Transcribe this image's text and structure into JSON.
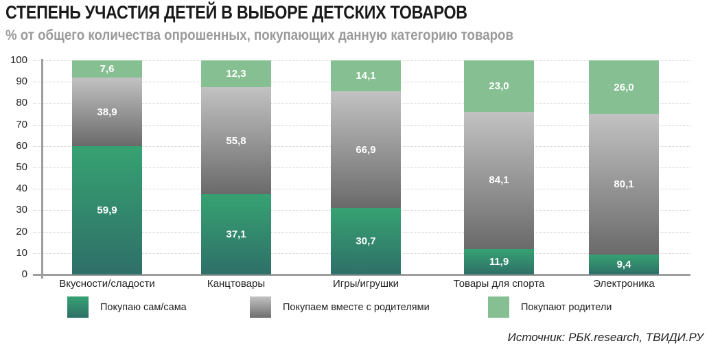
{
  "header": {
    "title": "СТЕПЕНЬ УЧАСТИЯ ДЕТЕЙ В ВЫБОРЕ ДЕТСКИХ ТОВАРОВ",
    "subtitle": "% от общего количества опрошенных, покупающих данную категорию товаров"
  },
  "axis": {
    "y_ticks": [
      "100",
      "90",
      "80",
      "70",
      "60",
      "50",
      "40",
      "30",
      "20",
      "10",
      "0"
    ]
  },
  "legend": [
    {
      "label": "Покупаю сам/сама",
      "color": "#36a272"
    },
    {
      "label": "Покупаем вместе с родителями",
      "color": "#9a9a9a"
    },
    {
      "label": "Покупают родители",
      "color": "#86bf91"
    }
  ],
  "source": "Источник: РБК.research, ТВИДИ.РУ",
  "bars": [
    {
      "category": "Вкусности/сладости",
      "self": {
        "label": "59,9",
        "h": 59.9
      },
      "together": {
        "label": "38,9",
        "h": 32.1
      },
      "parents": {
        "label": "7,6",
        "h": 8.0
      }
    },
    {
      "category": "Канцтовары",
      "self": {
        "label": "37,1",
        "h": 37.4
      },
      "together": {
        "label": "55,8",
        "h": 50.1
      },
      "parents": {
        "label": "12,3",
        "h": 12.5
      }
    },
    {
      "category": "Игры/игрушки",
      "self": {
        "label": "30,7",
        "h": 31.0
      },
      "together": {
        "label": "66,9",
        "h": 54.6
      },
      "parents": {
        "label": "14,1",
        "h": 14.4
      }
    },
    {
      "category": "Товары для спорта",
      "self": {
        "label": "11,9",
        "h": 11.9
      },
      "together": {
        "label": "84,1",
        "h": 64.1
      },
      "parents": {
        "label": "23,0",
        "h": 24.0
      }
    },
    {
      "category": "Электроника",
      "self": {
        "label": "9,4",
        "h": 9.4
      },
      "together": {
        "label": "80,1",
        "h": 65.6
      },
      "parents": {
        "label": "26,0",
        "h": 25.0
      }
    }
  ],
  "chart_data": {
    "type": "bar",
    "stacked": true,
    "title": "СТЕПЕНЬ УЧАСТИЯ ДЕТЕЙ В ВЫБОРЕ ДЕТСКИХ ТОВАРОВ",
    "subtitle": "% от общего количества опрошенных, покупающих данную категорию товаров",
    "xlabel": "",
    "ylabel": "",
    "ylim": [
      0,
      100
    ],
    "yticks": [
      0,
      10,
      20,
      30,
      40,
      50,
      60,
      70,
      80,
      90,
      100
    ],
    "grid": true,
    "legend_position": "bottom",
    "categories": [
      "Вкусности/сладости",
      "Канцтовары",
      "Игры/игрушки",
      "Товары для спорта",
      "Электроника"
    ],
    "series": [
      {
        "name": "Покупаю сам/сама",
        "values": [
          59.9,
          37.1,
          30.7,
          11.9,
          9.4
        ]
      },
      {
        "name": "Покупаем вместе с родителями",
        "values": [
          38.9,
          55.8,
          66.9,
          84.1,
          80.1
        ]
      },
      {
        "name": "Покупают родители",
        "values": [
          7.6,
          12.3,
          14.1,
          23.0,
          26.0
        ]
      }
    ],
    "annotations": [
      "Источник: РБК.research, ТВИДИ.РУ"
    ]
  }
}
